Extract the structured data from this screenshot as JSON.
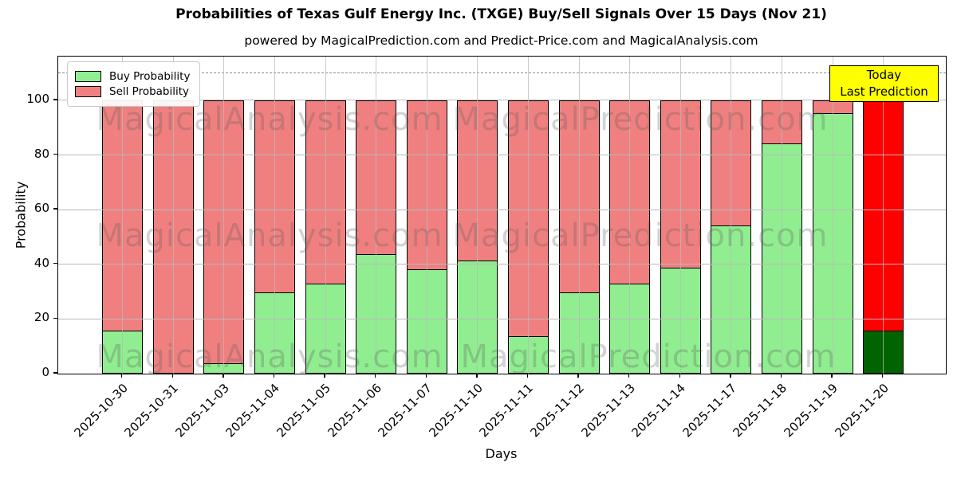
{
  "title": "Probabilities of Texas Gulf Energy Inc. (TXGE) Buy/Sell Signals Over 15 Days (Nov 21)",
  "subtitle": "powered by MagicalPrediction.com and Predict-Price.com and MagicalAnalysis.com",
  "legend": {
    "buy_label": "Buy Probability",
    "sell_label": "Sell Probability"
  },
  "today_box": {
    "line1": "Today",
    "line2": "Last Prediction"
  },
  "watermarks": {
    "left_text": "MagicalAnalysis.com",
    "right_text": "MagicalPrediction.com"
  },
  "colors": {
    "buy": "#90ee90",
    "sell": "#f08080",
    "today_buy": "#006400",
    "today_sell": "#ff0000",
    "today_box_bg": "#ffff00",
    "grid": "#b9b9b9",
    "dashed_line": "#8a8a8a"
  },
  "chart_data": {
    "type": "bar",
    "stacked": true,
    "title": "Probabilities of Texas Gulf Energy Inc. (TXGE) Buy/Sell Signals Over 15 Days (Nov 21)",
    "xlabel": "Days",
    "ylabel": "Probability",
    "categories": [
      "2025-10-30",
      "2025-10-31",
      "2025-11-03",
      "2025-11-04",
      "2025-11-05",
      "2025-11-06",
      "2025-11-07",
      "2025-11-10",
      "2025-11-11",
      "2025-11-12",
      "2025-11-13",
      "2025-11-14",
      "2025-11-17",
      "2025-11-18",
      "2025-11-19",
      "2025-11-20"
    ],
    "series": [
      {
        "name": "Buy Probability",
        "color": "#90ee90",
        "values": [
          16,
          0,
          4,
          30,
          33,
          44,
          38.5,
          41.5,
          14,
          30,
          33,
          39,
          54.5,
          84.5,
          95.5,
          16
        ]
      },
      {
        "name": "Sell Probability",
        "color": "#f08080",
        "values": [
          84,
          100,
          96,
          70,
          67,
          56,
          61.5,
          58.5,
          86,
          70,
          67,
          61,
          45.5,
          15.5,
          4.5,
          84
        ]
      }
    ],
    "today_bar_index": 15,
    "today_bar_colors": {
      "buy": "#006400",
      "sell": "#ff0000"
    },
    "yticks": [
      0,
      20,
      40,
      60,
      80,
      100
    ],
    "ylim": [
      0,
      116
    ],
    "dashed_line_y": 110,
    "grid": true,
    "legend_position": "upper left",
    "bar_total": 100
  }
}
